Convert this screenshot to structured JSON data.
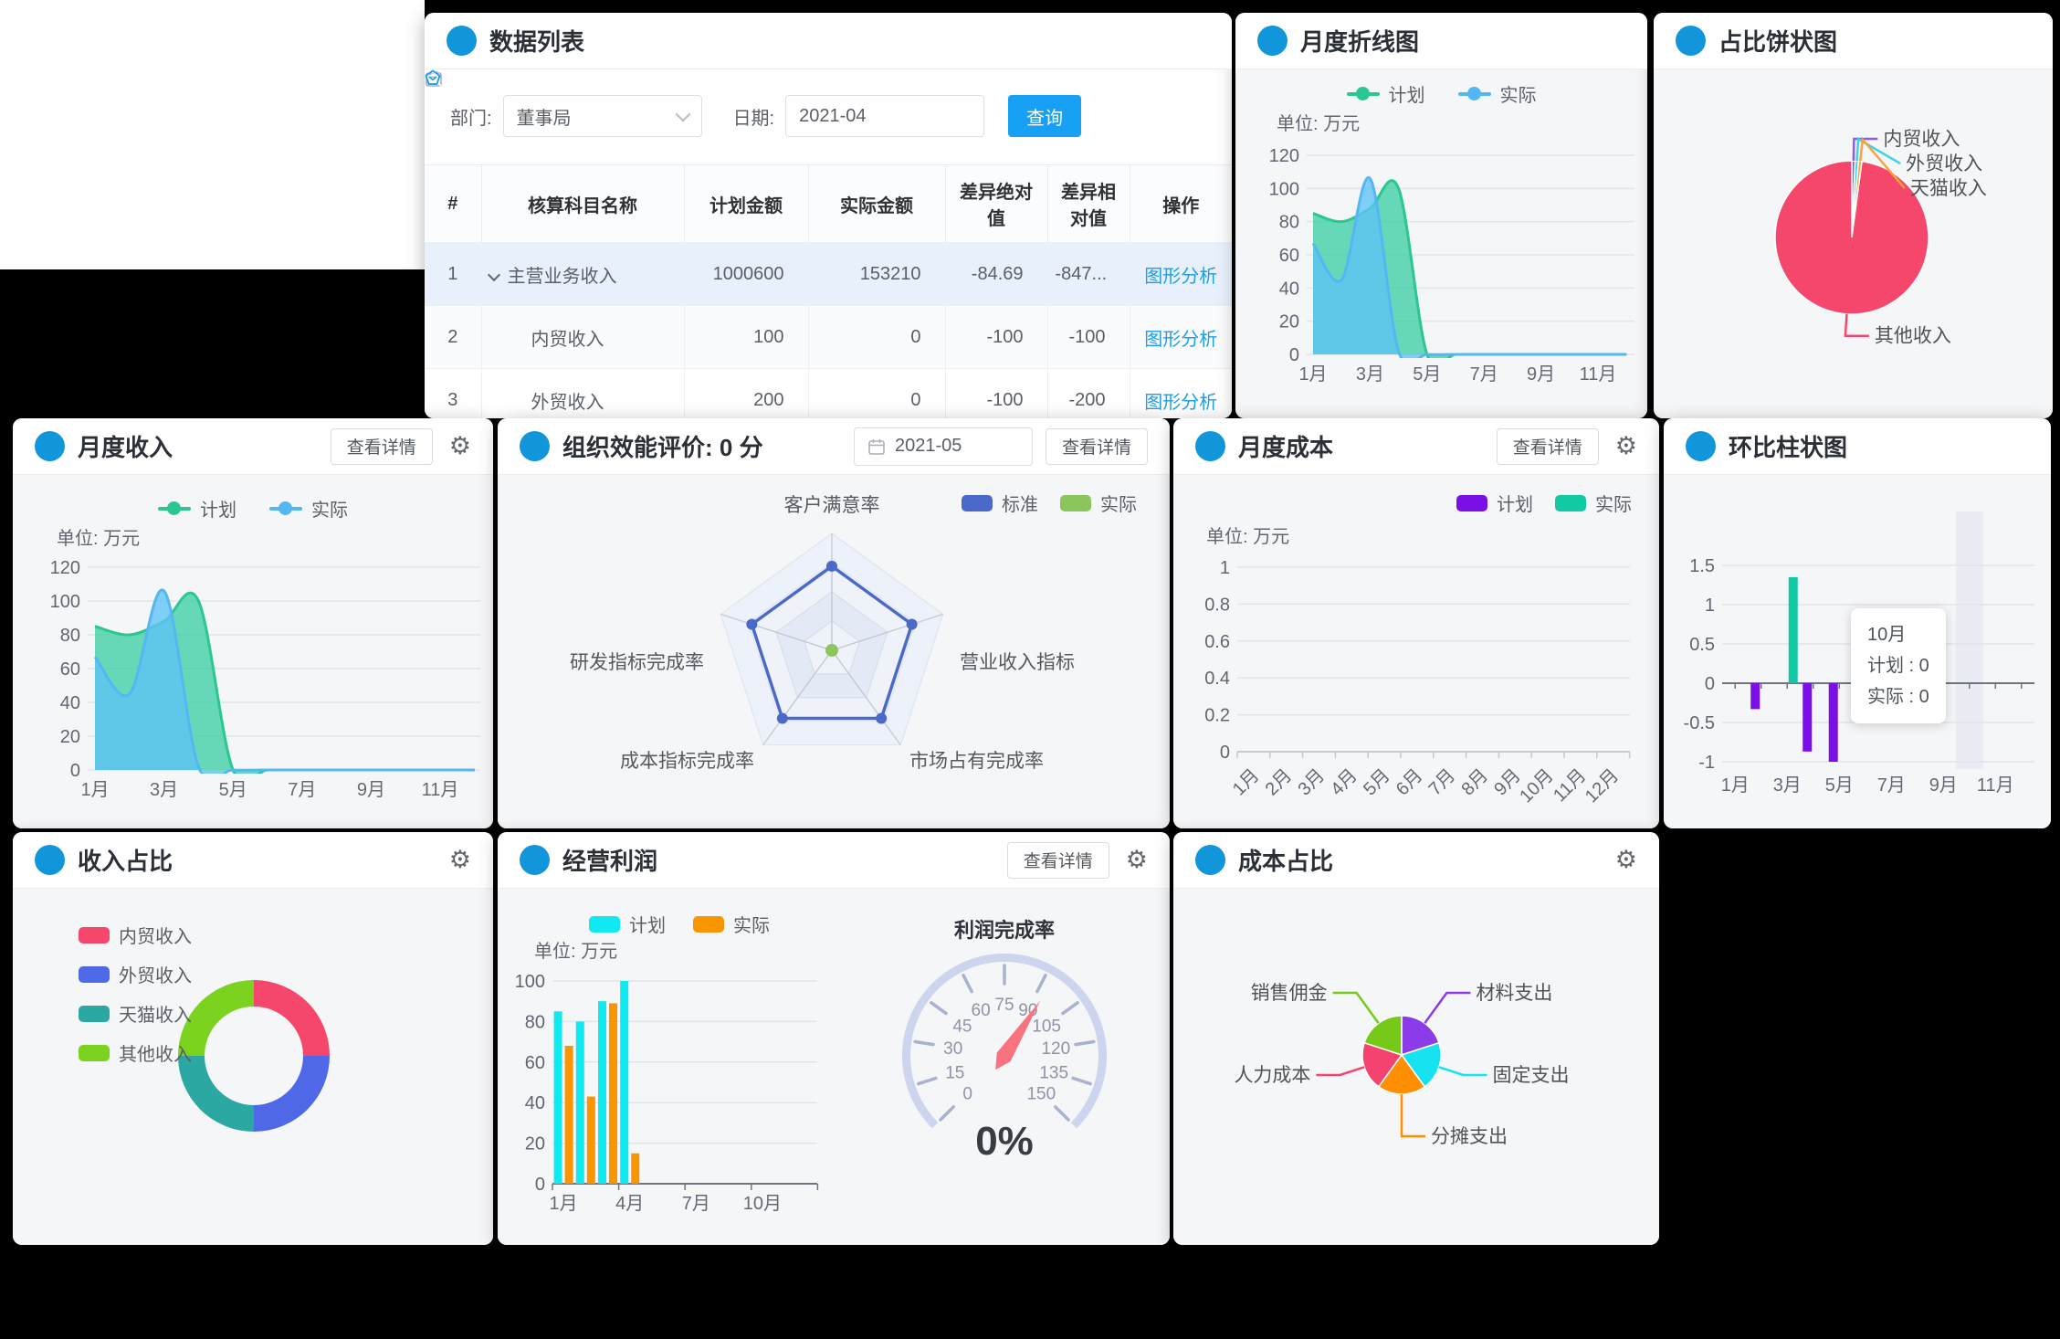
{
  "colors": {
    "accent_blue": "#1296db",
    "link_blue": "#1c9fe8",
    "button_blue": "#18a1f4"
  },
  "data_table": {
    "title": "数据列表",
    "dept_label": "部门:",
    "dept_value": "董事局",
    "date_label": "日期:",
    "date_value": "2021-04",
    "search_label": "查询",
    "columns": [
      "#",
      "核算科目名称",
      "计划金额",
      "实际金额",
      "差异绝对值",
      "差异相对值",
      "操作"
    ],
    "action_label": "图形分析",
    "rows": [
      {
        "index": "1",
        "name": "主营业务收入",
        "plan": "1000600",
        "actual": "153210",
        "diff_abs": "-84.69",
        "diff_rel": "-847...",
        "selected": true,
        "expandable": true
      },
      {
        "index": "2",
        "name": "内贸收入",
        "plan": "100",
        "actual": "0",
        "diff_abs": "-100",
        "diff_rel": "-100"
      },
      {
        "index": "3",
        "name": "外贸收入",
        "plan": "200",
        "actual": "0",
        "diff_abs": "-100",
        "diff_rel": "-200"
      }
    ]
  },
  "panels": {
    "monthly_line": {
      "title": "月度折线图"
    },
    "pie_ratio": {
      "title": "占比饼状图"
    },
    "monthly_income": {
      "title": "月度收入",
      "detail": "查看详情"
    },
    "org_eval": {
      "title": "组织效能评价: 0 分",
      "date_value": "2021-05",
      "detail": "查看详情"
    },
    "monthly_cost": {
      "title": "月度成本",
      "detail": "查看详情"
    },
    "hb_bar": {
      "title": "环比柱状图"
    },
    "income_share": {
      "title": "收入占比"
    },
    "profit": {
      "title": "经营利润",
      "detail": "查看详情"
    },
    "cost_share": {
      "title": "成本占比"
    }
  },
  "chart_data": [
    {
      "id": "monthly_trend",
      "type": "area",
      "title": "月度折线图 / 月度收入",
      "unit": "单位: 万元",
      "x": [
        "1月",
        "2月",
        "3月",
        "4月",
        "5月",
        "6月",
        "7月",
        "8月",
        "9月",
        "10月",
        "11月",
        "12月"
      ],
      "shown_x_labels": [
        "1月",
        "3月",
        "5月",
        "7月",
        "9月",
        "11月"
      ],
      "ylim": [
        0,
        120
      ],
      "yticks": [
        0,
        20,
        40,
        60,
        80,
        100,
        120
      ],
      "series": [
        {
          "name": "计划",
          "color": "#2cc690",
          "fill": "#3ed0a5",
          "values": [
            85,
            80,
            88,
            100,
            0,
            0,
            0,
            0,
            0,
            0,
            0,
            0
          ]
        },
        {
          "name": "实际",
          "color": "#55b7f2",
          "fill": "#5ec3f7",
          "values": [
            67,
            45,
            106,
            2,
            0,
            0,
            0,
            0,
            0,
            0,
            0,
            0
          ]
        }
      ],
      "legend_position": "top-center",
      "grid": true
    },
    {
      "id": "radar_eval",
      "type": "radar",
      "max": 100,
      "indicators": [
        "客户满意率",
        "营业收入指标",
        "市场占有完成率",
        "成本指标完成率",
        "研发指标完成率"
      ],
      "series": [
        {
          "name": "标准",
          "color": "#4a69c8",
          "values": [
            72,
            72,
            72,
            72,
            72
          ]
        },
        {
          "name": "实际",
          "color": "#8cc55c",
          "values": [
            0,
            0,
            0,
            0,
            0
          ]
        }
      ],
      "legend_position": "top-right"
    },
    {
      "id": "monthly_cost",
      "type": "bar",
      "unit": "单位: 万元",
      "x": [
        "1月",
        "2月",
        "3月",
        "4月",
        "5月",
        "6月",
        "7月",
        "8月",
        "9月",
        "10月",
        "11月",
        "12月"
      ],
      "ylim": [
        0,
        1
      ],
      "yticks": [
        0,
        0.2,
        0.4,
        0.6,
        0.8,
        1
      ],
      "series": [
        {
          "name": "计划",
          "color": "#7b10e6",
          "values": [
            0,
            0,
            0,
            0,
            0,
            0,
            0,
            0,
            0,
            0,
            0,
            0
          ]
        },
        {
          "name": "实际",
          "color": "#12c9a6",
          "values": [
            0,
            0,
            0,
            0,
            0,
            0,
            0,
            0,
            0,
            0,
            0,
            0
          ]
        }
      ],
      "rotated_x_labels": true,
      "legend_position": "top-right",
      "grid": true
    },
    {
      "id": "hb",
      "type": "bar",
      "title": "环比柱状图",
      "x": [
        "1月",
        "2月",
        "3月",
        "4月",
        "5月",
        "6月",
        "7月",
        "8月",
        "9月",
        "10月",
        "11月",
        "12月"
      ],
      "shown_x_labels": [
        "1月",
        "3月",
        "5月",
        "7月",
        "9月",
        "11月"
      ],
      "ylim": [
        -1,
        1.5
      ],
      "yticks": [
        -1,
        -0.5,
        0,
        0.5,
        1,
        1.5
      ],
      "series": [
        {
          "name": "计划",
          "color": "#7b10e6",
          "values": [
            0,
            -0.33,
            0,
            -0.87,
            -1,
            0,
            0,
            0,
            0,
            0,
            0,
            0
          ]
        },
        {
          "name": "实际",
          "color": "#12c9a6",
          "values": [
            0,
            0,
            1.35,
            0,
            0,
            0,
            0,
            0,
            0,
            0,
            0,
            0
          ]
        }
      ],
      "tooltip": {
        "month": "10月",
        "lines": [
          "计划 : 0",
          "实际 : 0"
        ],
        "highlight_month": 10
      },
      "grid": true
    },
    {
      "id": "income_share",
      "type": "pie",
      "donut": true,
      "labels": [
        "内贸收入",
        "外贸收入",
        "天猫收入",
        "其他收入"
      ],
      "values": [
        25,
        25,
        25,
        25
      ],
      "colors": [
        "#f5476b",
        "#4e68e8",
        "#2ba8a2",
        "#7cd31f"
      ],
      "legend_position": "left"
    },
    {
      "id": "pie_ratio",
      "type": "pie",
      "donut": false,
      "labeled": true,
      "labels": [
        "内贸收入",
        "外贸收入",
        "天猫收入",
        "其他收入"
      ],
      "values": [
        0.7,
        0.7,
        0.7,
        97.9
      ],
      "colors": [
        "#8a5cf5",
        "#3ed3e8",
        "#f8a33e",
        "#f5476b"
      ]
    },
    {
      "id": "profit_bars",
      "type": "bar",
      "unit": "单位: 万元",
      "x": [
        "1月",
        "2月",
        "3月",
        "4月",
        "5月",
        "6月",
        "7月",
        "8月",
        "9月",
        "10月",
        "11月",
        "12月"
      ],
      "shown_x_labels": [
        "1月",
        "4月",
        "7月",
        "10月"
      ],
      "ylim": [
        0,
        100
      ],
      "yticks": [
        0,
        20,
        40,
        60,
        80,
        100
      ],
      "series": [
        {
          "name": "计划",
          "color": "#0fe9ef",
          "values": [
            85,
            80,
            90,
            100,
            0,
            0,
            0,
            0,
            0,
            0,
            0,
            0
          ]
        },
        {
          "name": "实际",
          "color": "#f89500",
          "values": [
            68,
            43,
            89,
            15,
            0,
            0,
            0,
            0,
            0,
            0,
            0,
            0
          ]
        }
      ],
      "legend_position": "top-left",
      "grid": true
    },
    {
      "id": "gauge",
      "type": "gauge",
      "title": "利润完成率",
      "min": 0,
      "max": 150,
      "tick_values": [
        0,
        15,
        30,
        45,
        60,
        75,
        90,
        105,
        120,
        135,
        150
      ],
      "value_label": "0%"
    },
    {
      "id": "cost_share",
      "type": "pie",
      "donut": false,
      "labeled": true,
      "labels": [
        "材料支出",
        "固定支出",
        "分摊支出",
        "人力成本",
        "销售佣金"
      ],
      "values": [
        20,
        20,
        20,
        20,
        20
      ],
      "colors": [
        "#8b3be8",
        "#16e2f0",
        "#ff8f00",
        "#f5426e",
        "#77c919"
      ]
    }
  ]
}
